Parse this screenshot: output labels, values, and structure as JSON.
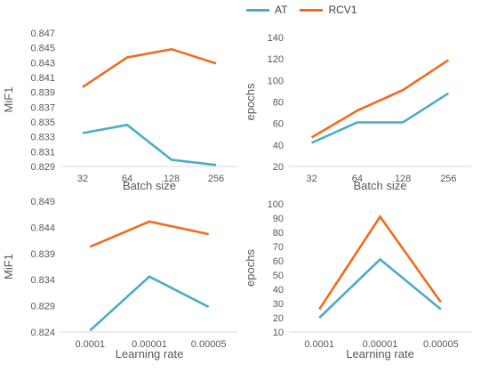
{
  "legend": [
    {
      "name": "AT",
      "color": "#4BACC6"
    },
    {
      "name": "RCV1",
      "color": "#F26B1D"
    }
  ],
  "chart_data": [
    {
      "type": "line",
      "xlabel": "Batch size",
      "ylabel": "MiF1",
      "categories": [
        "32",
        "64",
        "128",
        "256"
      ],
      "ylim": [
        0.829,
        0.847
      ],
      "yticks": [
        "0.829",
        "0.831",
        "0.833",
        "0.835",
        "0.837",
        "0.839",
        "0.841",
        "0.843",
        "0.845",
        "0.847"
      ],
      "series": [
        {
          "name": "AT",
          "values": [
            0.8335,
            0.8346,
            0.8299,
            0.8292
          ]
        },
        {
          "name": "RCV1",
          "values": [
            0.8397,
            0.8437,
            0.8448,
            0.8429
          ]
        }
      ]
    },
    {
      "type": "line",
      "xlabel": "Batch size",
      "ylabel": "epochs",
      "categories": [
        "32",
        "64",
        "128",
        "256"
      ],
      "ylim": [
        20,
        140
      ],
      "yticks": [
        "20",
        "40",
        "60",
        "80",
        "100",
        "120",
        "140"
      ],
      "series": [
        {
          "name": "AT",
          "values": [
            42,
            61,
            61,
            88
          ]
        },
        {
          "name": "RCV1",
          "values": [
            47,
            72,
            91,
            119
          ]
        }
      ]
    },
    {
      "type": "line",
      "xlabel": "Learning rate",
      "ylabel": "MiF1",
      "categories": [
        "0.0001",
        "0.00001",
        "0.00005"
      ],
      "ylim": [
        0.824,
        0.849
      ],
      "yticks": [
        "0.824",
        "0.829",
        "0.834",
        "0.839",
        "0.844",
        "0.849"
      ],
      "series": [
        {
          "name": "AT",
          "values": [
            0.8243,
            0.8346,
            0.8288
          ]
        },
        {
          "name": "RCV1",
          "values": [
            0.8403,
            0.8451,
            0.8427
          ]
        }
      ]
    },
    {
      "type": "line",
      "xlabel": "Learning rate",
      "ylabel": "epochs",
      "categories": [
        "0.0001",
        "0.00001",
        "0.00005"
      ],
      "ylim": [
        10,
        100
      ],
      "yticks": [
        "10",
        "20",
        "30",
        "40",
        "50",
        "60",
        "70",
        "80",
        "90",
        "100"
      ],
      "series": [
        {
          "name": "AT",
          "values": [
            20,
            61,
            26
          ]
        },
        {
          "name": "RCV1",
          "values": [
            26,
            91,
            31
          ]
        }
      ]
    }
  ]
}
